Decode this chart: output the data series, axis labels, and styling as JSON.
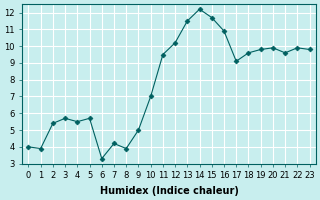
{
  "xlabel": "Humidex (Indice chaleur)",
  "x": [
    0,
    1,
    2,
    3,
    4,
    5,
    6,
    7,
    8,
    9,
    10,
    11,
    12,
    13,
    14,
    15,
    16,
    17,
    18,
    19,
    20,
    21,
    22,
    23
  ],
  "y": [
    4.0,
    3.9,
    5.4,
    5.7,
    5.5,
    5.7,
    3.3,
    4.2,
    3.9,
    5.0,
    7.0,
    9.5,
    10.2,
    11.5,
    12.2,
    11.7,
    10.9,
    9.1,
    9.6,
    9.8,
    9.9,
    9.6,
    9.9,
    9.8
  ],
  "ylim": [
    3,
    12.5
  ],
  "xlim": [
    -0.5,
    23.5
  ],
  "yticks": [
    3,
    4,
    5,
    6,
    7,
    8,
    9,
    10,
    11,
    12
  ],
  "xticks": [
    0,
    1,
    2,
    3,
    4,
    5,
    6,
    7,
    8,
    9,
    10,
    11,
    12,
    13,
    14,
    15,
    16,
    17,
    18,
    19,
    20,
    21,
    22,
    23
  ],
  "line_color": "#006060",
  "marker": "D",
  "marker_size": 2.5,
  "bg_color": "#c8eeee",
  "grid_color": "#ffffff",
  "axis_bg": "#c8eeee",
  "label_fontsize": 7,
  "tick_fontsize": 6
}
